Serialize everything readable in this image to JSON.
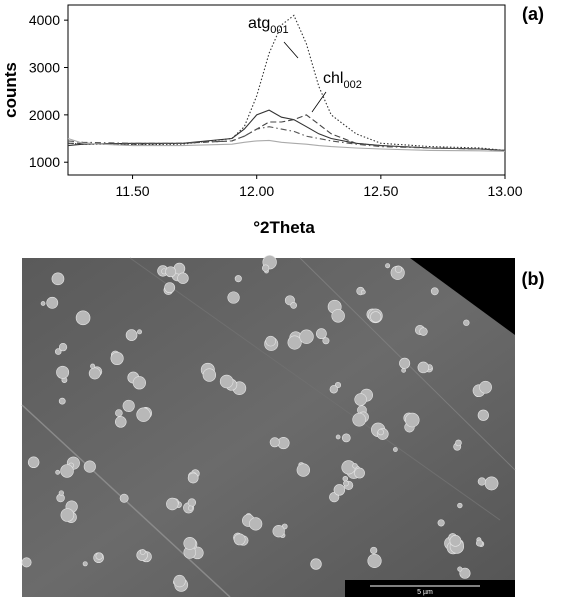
{
  "chart_data": {
    "type": "line",
    "y_label": "counts",
    "x_label": "°2Theta",
    "xlim": [
      11.24,
      13.0
    ],
    "ylim": [
      730,
      4320
    ],
    "xticks": [
      {
        "value": 11.5,
        "label": "11.50"
      },
      {
        "value": 12.0,
        "label": "12.00"
      },
      {
        "value": 12.5,
        "label": "12.50"
      },
      {
        "value": 13.0,
        "label": "13.00"
      }
    ],
    "yticks": [
      1000,
      2000,
      3000,
      4000
    ],
    "x": [
      11.24,
      11.3,
      11.5,
      11.7,
      11.9,
      11.95,
      12.0,
      12.05,
      12.1,
      12.15,
      12.2,
      12.25,
      12.3,
      12.4,
      12.5,
      12.7,
      12.9,
      13.0
    ],
    "series": [
      {
        "color": "#333333",
        "dash": "dotted",
        "values": [
          1400,
          1380,
          1370,
          1380,
          1500,
          1750,
          2400,
          3300,
          3900,
          4100,
          3500,
          2600,
          2000,
          1600,
          1400,
          1330,
          1300,
          1250
        ]
      },
      {
        "color": "#333333",
        "dash": "solid",
        "values": [
          1350,
          1380,
          1400,
          1400,
          1500,
          1700,
          2000,
          2100,
          1950,
          1900,
          1750,
          1600,
          1500,
          1400,
          1350,
          1300,
          1280,
          1250
        ]
      },
      {
        "color": "#444444",
        "dash": "dashed",
        "values": [
          1400,
          1400,
          1380,
          1400,
          1450,
          1550,
          1700,
          1850,
          1850,
          1900,
          2000,
          1800,
          1600,
          1400,
          1350,
          1300,
          1280,
          1250
        ]
      },
      {
        "color": "#555555",
        "dash": "dashdot",
        "values": [
          1450,
          1420,
          1400,
          1400,
          1450,
          1550,
          1700,
          1750,
          1700,
          1650,
          1550,
          1500,
          1450,
          1380,
          1330,
          1300,
          1280,
          1250
        ]
      },
      {
        "color": "#aaaaaa",
        "dash": "solid",
        "values": [
          1500,
          1400,
          1350,
          1350,
          1380,
          1420,
          1450,
          1460,
          1420,
          1400,
          1380,
          1350,
          1330,
          1300,
          1280,
          1250,
          1240,
          1230
        ]
      }
    ],
    "annotations": [
      {
        "text": "atg",
        "sub": "001"
      },
      {
        "text": "chl",
        "sub": "002"
      }
    ]
  },
  "panels": {
    "a": "(a)",
    "b": "(b)"
  },
  "image": {
    "scale_bar": "5 µm"
  }
}
